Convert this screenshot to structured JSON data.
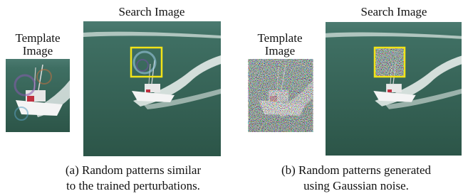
{
  "panels": [
    {
      "template_label": [
        "Template",
        "Image"
      ],
      "search_label": "Search Image",
      "caption": [
        "(a) Random patterns similar",
        "to the trained perturbations."
      ]
    },
    {
      "template_label": [
        "Template",
        "Image"
      ],
      "search_label": "Search Image",
      "caption": [
        "(b) Random patterns generated",
        "using Gaussian noise."
      ]
    }
  ]
}
